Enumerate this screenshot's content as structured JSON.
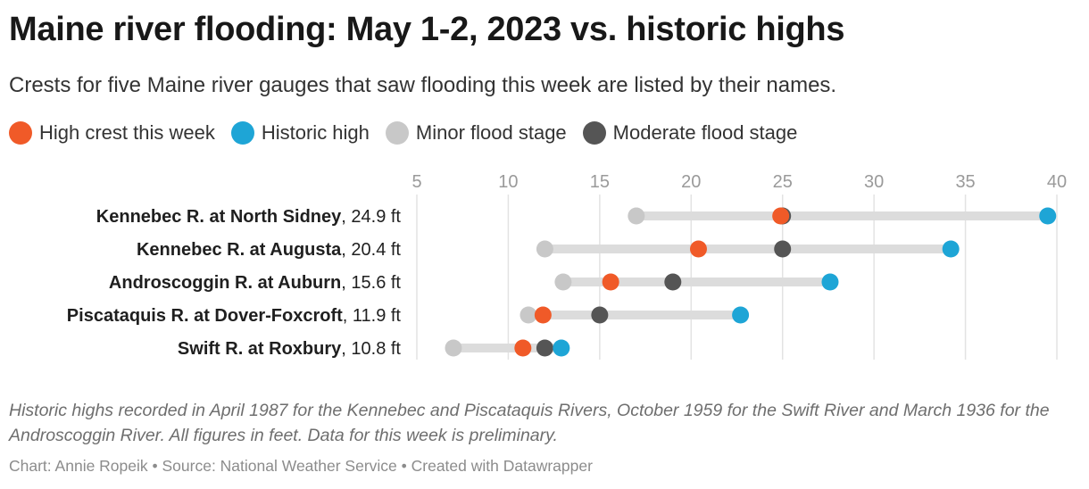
{
  "title": "Maine river flooding: May 1-2, 2023 vs. historic highs",
  "subtitle": "Crests for five Maine river gauges that saw flooding this week are listed by their names.",
  "legend": [
    {
      "key": "crest",
      "label": "High crest this week",
      "color": "#f05a28"
    },
    {
      "key": "historic",
      "label": "Historic high",
      "color": "#1ea5d6"
    },
    {
      "key": "minor",
      "label": "Minor flood stage",
      "color": "#c8c8c8"
    },
    {
      "key": "moderate",
      "label": "Moderate flood stage",
      "color": "#555555"
    }
  ],
  "notes": "Historic highs recorded in April 1987 for the Kennebec and Piscataquis Rivers, October 1959 for the Swift River and March 1936 for the Androscoggin River. All figures in feet. Data for this week is preliminary.",
  "credit": "Chart: Annie Ropeik • Source: National Weather Service • Created with Datawrapper",
  "chart_data": {
    "type": "range-dot",
    "x_range": [
      5,
      40
    ],
    "x_ticks": [
      5,
      10,
      15,
      20,
      25,
      30,
      35,
      40
    ],
    "grid": true,
    "legend_position": "top-left",
    "series_keys": [
      "minor",
      "moderate",
      "historic",
      "crest"
    ],
    "rows": [
      {
        "name": "Kennebec R. at North Sidney",
        "suffix": ", 24.9 ft",
        "crest": 24.9,
        "historic": 39.5,
        "minor": 17,
        "moderate": 25
      },
      {
        "name": "Kennebec R. at Augusta",
        "suffix": ", 20.4 ft",
        "crest": 20.4,
        "historic": 34.2,
        "minor": 12,
        "moderate": 25
      },
      {
        "name": "Androscoggin R. at Auburn",
        "suffix": ", 15.6 ft",
        "crest": 15.6,
        "historic": 27.6,
        "minor": 13,
        "moderate": 19
      },
      {
        "name": "Piscataquis R. at Dover-Foxcroft",
        "suffix": ", 11.9 ft",
        "crest": 11.9,
        "historic": 22.7,
        "minor": 11.1,
        "moderate": 15
      },
      {
        "name": "Swift R. at Roxbury",
        "suffix": ", 10.8 ft",
        "crest": 10.8,
        "historic": 12.9,
        "minor": 7,
        "moderate": 12
      }
    ]
  }
}
